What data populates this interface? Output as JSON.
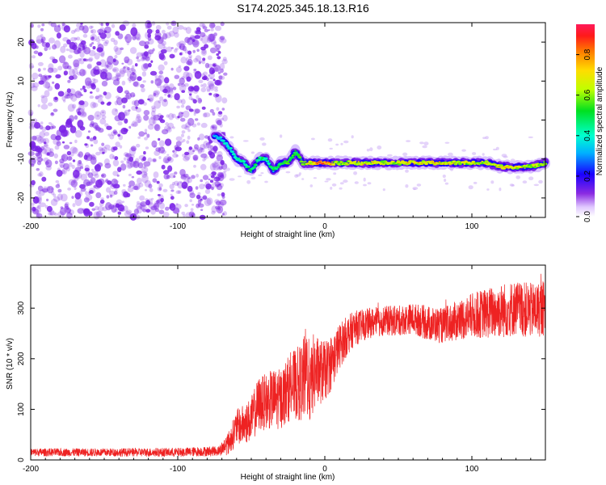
{
  "title": "S174.2025.345.18.13.R16",
  "chart_data": [
    {
      "type": "heatmap",
      "xlabel": "Height of straight line (km)",
      "ylabel": "Frequency (Hz)",
      "xlim": [
        -200,
        150
      ],
      "ylim": [
        -25,
        25
      ],
      "x_ticks": [
        "-200",
        "-100",
        "0",
        "100"
      ],
      "x_tick_values": [
        -200,
        -100,
        0,
        100
      ],
      "y_ticks": [
        "20",
        "10",
        "0",
        "-10",
        "-20"
      ],
      "y_tick_values": [
        20,
        10,
        0,
        -10,
        -20
      ],
      "colorbar": {
        "label": "Normalized spectral amplitude",
        "range": [
          0,
          0.95
        ],
        "ticks": [
          "0.0",
          "0.2",
          "0.4",
          "0.6",
          "0.8"
        ],
        "tick_values": [
          0.0,
          0.2,
          0.4,
          0.6,
          0.8
        ]
      },
      "noise_region_x": [
        -200,
        -72
      ],
      "ridge": {
        "x": [
          -75,
          -70,
          -65,
          -60,
          -55,
          -50,
          -45,
          -40,
          -35,
          -30,
          -25,
          -20,
          -15,
          -10,
          -5,
          0,
          10,
          20,
          30,
          40,
          50,
          60,
          70,
          80,
          90,
          100,
          110,
          120,
          130,
          140,
          150
        ],
        "freq": [
          -4,
          -5,
          -7,
          -10,
          -11,
          -13,
          -10,
          -10,
          -13,
          -11,
          -11,
          -8,
          -11,
          -11,
          -11,
          -11,
          -11,
          -11,
          -11,
          -11,
          -11,
          -11,
          -11,
          -11,
          -11,
          -11,
          -11,
          -12,
          -12,
          -12,
          -11
        ],
        "amplitude": [
          0.3,
          0.35,
          0.4,
          0.4,
          0.45,
          0.5,
          0.5,
          0.45,
          0.5,
          0.55,
          0.55,
          0.55,
          0.6,
          0.75,
          0.9,
          0.9,
          0.65,
          0.7,
          0.75,
          0.7,
          0.7,
          0.75,
          0.75,
          0.75,
          0.7,
          0.7,
          0.7,
          0.75,
          0.75,
          0.7,
          0.6
        ]
      },
      "colors": {
        "plot_bg": "#ffffff",
        "noise_dots": "#7a22e6"
      }
    },
    {
      "type": "line",
      "xlabel": "Height of straight line (km)",
      "ylabel": "SNR (10 * v/v)",
      "xlim": [
        -200,
        150
      ],
      "ylim": [
        0,
        385
      ],
      "x_ticks": [
        "-200",
        "-100",
        "0",
        "100"
      ],
      "x_tick_values": [
        -200,
        -100,
        0,
        100
      ],
      "y_ticks": [
        "0",
        "100",
        "200",
        "300"
      ],
      "y_tick_values": [
        0,
        100,
        200,
        300
      ],
      "series": [
        {
          "color": "#ee2222",
          "envelope": {
            "x": [
              -200,
              -150,
              -100,
              -72,
              -65,
              -60,
              -55,
              -50,
              -45,
              -40,
              -35,
              -30,
              -25,
              -20,
              -15,
              -12,
              -10,
              -8,
              -5,
              0,
              5,
              10,
              15,
              20,
              30,
              40,
              50,
              60,
              70,
              80,
              90,
              100,
              110,
              120,
              130,
              140,
              150
            ],
            "mean": [
              15,
              15,
              15,
              18,
              35,
              65,
              70,
              80,
              110,
              115,
              120,
              120,
              140,
              150,
              155,
              180,
              140,
              170,
              175,
              175,
              195,
              225,
              245,
              260,
              270,
              275,
              275,
              280,
              270,
              265,
              275,
              285,
              290,
              295,
              300,
              295,
              300
            ],
            "spread": [
              8,
              8,
              9,
              10,
              25,
              35,
              40,
              45,
              55,
              55,
              60,
              60,
              65,
              70,
              80,
              100,
              70,
              80,
              70,
              60,
              55,
              45,
              40,
              35,
              30,
              30,
              30,
              30,
              35,
              35,
              40,
              45,
              50,
              55,
              55,
              55,
              55
            ]
          }
        }
      ]
    }
  ]
}
